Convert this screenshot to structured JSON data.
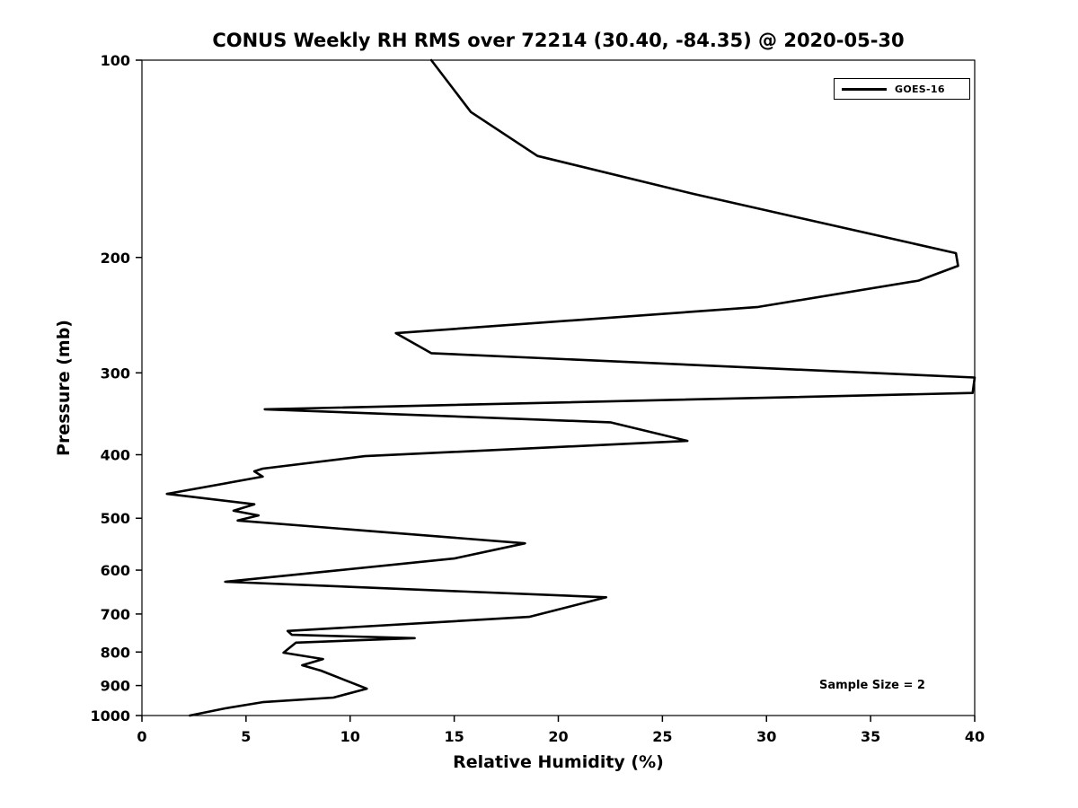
{
  "figure": {
    "background": "#ffffff",
    "line_color": "#000000"
  },
  "chart_data": {
    "type": "line",
    "title": "CONUS Weekly RH RMS over 72214 (30.40, -84.35) @ 2020-05-30",
    "xlabel": "Relative Humidity (%)",
    "ylabel": "Pressure (mb)",
    "xlim": [
      0,
      40
    ],
    "ylim": [
      100,
      1000
    ],
    "yscale": "log",
    "y_inverted": true,
    "grid": false,
    "x_ticks": [
      0,
      5,
      10,
      15,
      20,
      25,
      30,
      35,
      40
    ],
    "y_ticks": [
      100,
      200,
      300,
      400,
      500,
      600,
      700,
      800,
      900,
      1000
    ],
    "legend": {
      "position": "upper right",
      "entries": [
        {
          "label": "GOES-16",
          "color": "#000000"
        }
      ]
    },
    "annotation": "Sample Size = 2",
    "series": [
      {
        "name": "GOES-16",
        "color": "#000000",
        "points_pressure_rh": [
          [
            100,
            13.9
          ],
          [
            120,
            15.8
          ],
          [
            140,
            19.0
          ],
          [
            160,
            26.5
          ],
          [
            197,
            39.1
          ],
          [
            206,
            39.2
          ],
          [
            217,
            37.3
          ],
          [
            238,
            29.6
          ],
          [
            261,
            12.2
          ],
          [
            280,
            13.9
          ],
          [
            305,
            40.0
          ],
          [
            322,
            39.9
          ],
          [
            341,
            5.9
          ],
          [
            357,
            22.5
          ],
          [
            381,
            26.2
          ],
          [
            402,
            10.7
          ],
          [
            420,
            5.8
          ],
          [
            424,
            5.4
          ],
          [
            432,
            5.8
          ],
          [
            459,
            1.2
          ],
          [
            476,
            5.4
          ],
          [
            487,
            4.4
          ],
          [
            495,
            5.6
          ],
          [
            504,
            4.6
          ],
          [
            546,
            18.4
          ],
          [
            576,
            15.0
          ],
          [
            625,
            4.0
          ],
          [
            660,
            22.3
          ],
          [
            707,
            18.6
          ],
          [
            743,
            7.0
          ],
          [
            753,
            7.2
          ],
          [
            762,
            13.1
          ],
          [
            774,
            7.4
          ],
          [
            802,
            6.8
          ],
          [
            820,
            8.7
          ],
          [
            838,
            7.7
          ],
          [
            854,
            8.6
          ],
          [
            910,
            10.8
          ],
          [
            939,
            9.2
          ],
          [
            954,
            5.8
          ],
          [
            975,
            4.0
          ],
          [
            1000,
            2.3
          ]
        ]
      }
    ]
  }
}
